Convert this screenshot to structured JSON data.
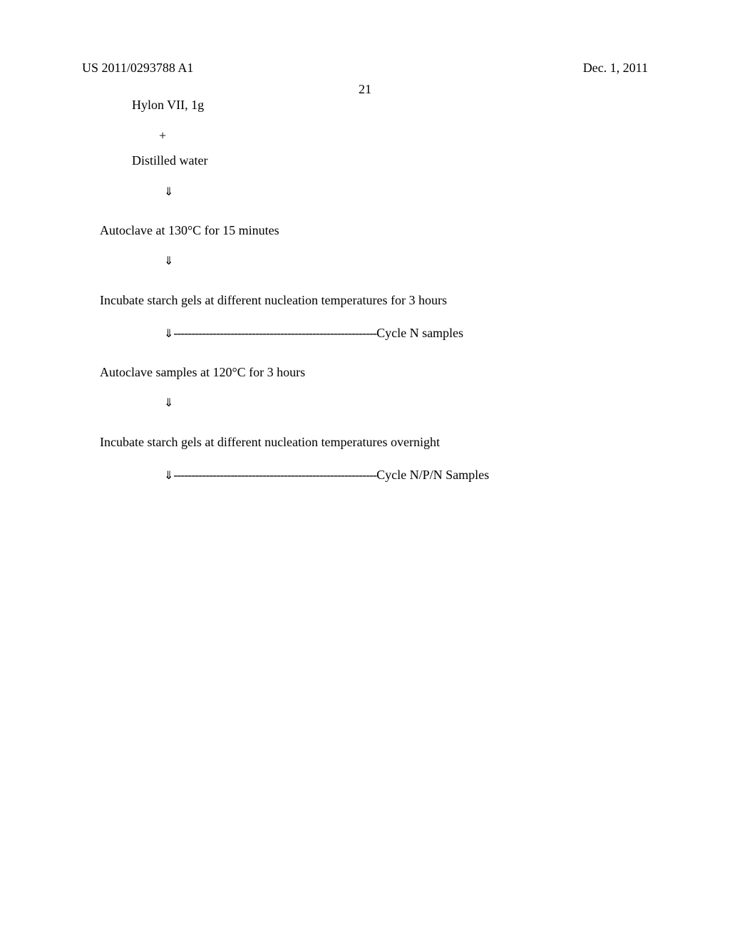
{
  "header": {
    "patent_number": "US 2011/0293788 A1",
    "date": "Dec. 1, 2011",
    "page_number": "21"
  },
  "content": {
    "step1": "Hylon VII, 1g",
    "plus": "+",
    "step2": "Distilled water",
    "arrow": "⇓",
    "step3": "Autoclave at 130°C for 15 minutes",
    "step4": "Incubate starch gels at different nucleation temperatures for 3 hours",
    "cycle1_label": "Cycle N samples",
    "step5": "Autoclave samples at 120°C for 3 hours",
    "step6": "Incubate starch gels at different nucleation temperatures overnight",
    "cycle2_label": "Cycle N/P/N Samples",
    "dashes": "---------------------------------------------------------"
  },
  "style": {
    "background_color": "#ffffff",
    "text_color": "#000000",
    "font_family": "Times New Roman",
    "body_fontsize": 18,
    "header_fontsize": 18
  }
}
